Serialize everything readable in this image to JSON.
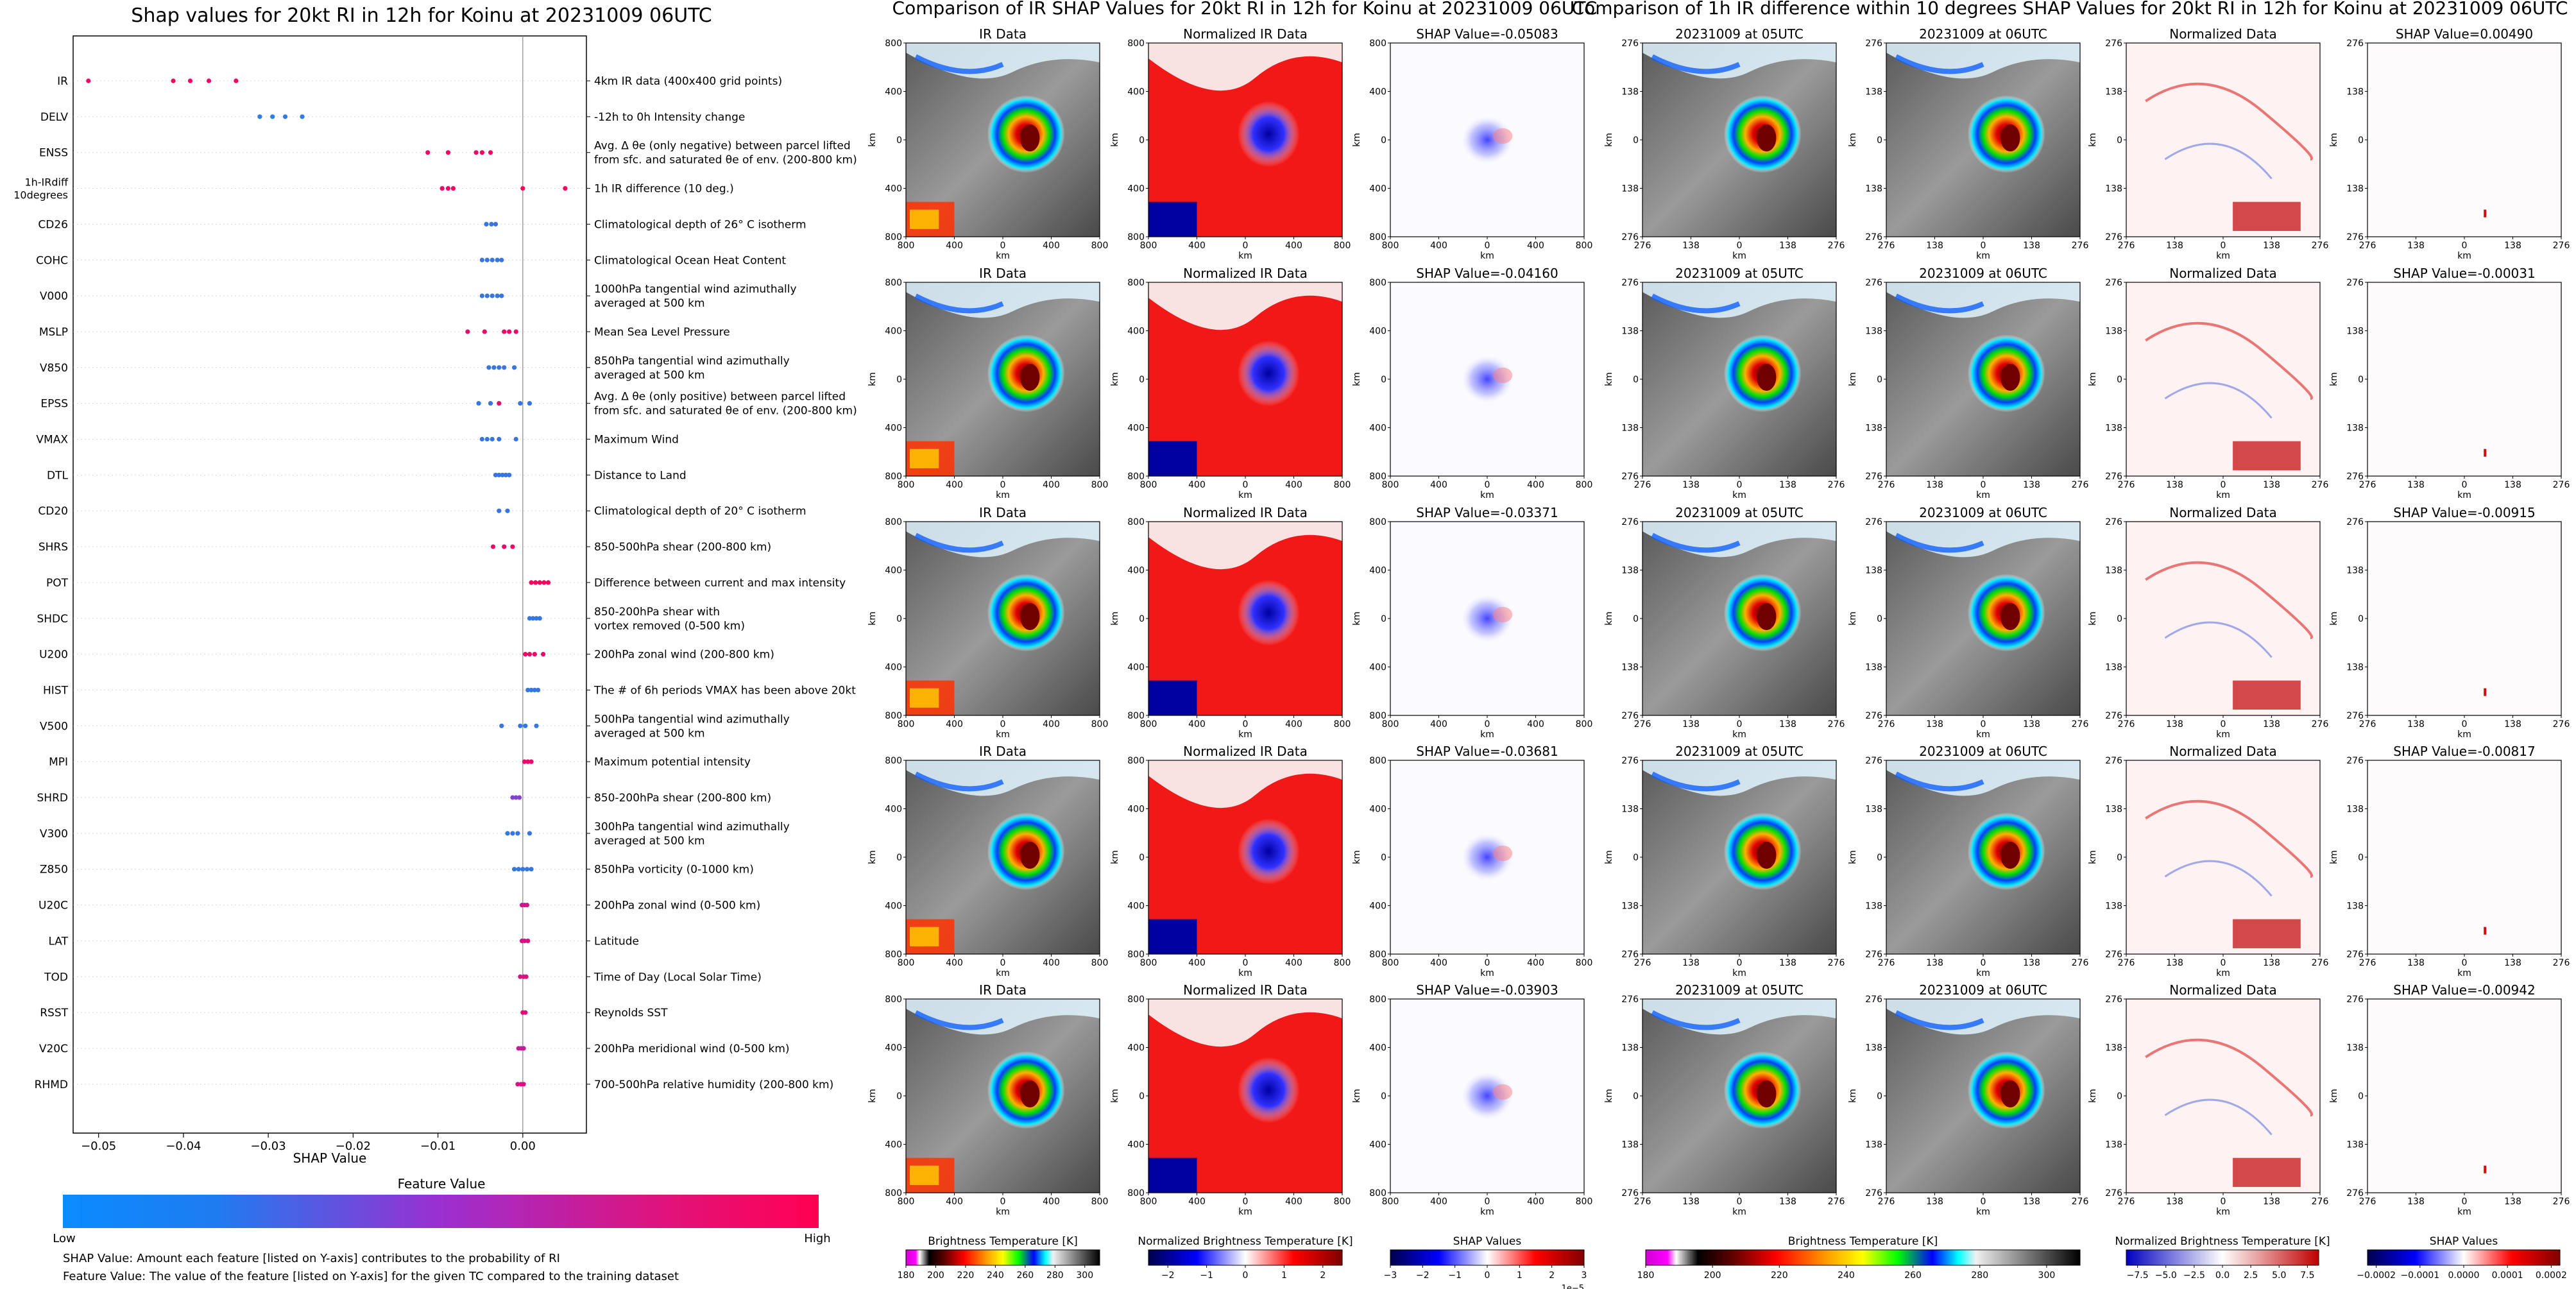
{
  "left_panel": {
    "title": "Shap values for 20kt RI in 12h for Koinu at 20231009 06UTC",
    "colorbar_title": "Feature Value",
    "colorbar_low": "Low",
    "colorbar_high": "High",
    "footnote_1": "SHAP Value: Amount each feature [listed on Y-axis] contributes to the probability of RI",
    "footnote_2": "Feature Value: The value of the feature [listed on Y-axis] for the given TC compared to the training dataset",
    "colors": {
      "low": "#1e88e5",
      "mid": "#9b30c8",
      "high": "#ff0051",
      "grid": "#bbbbbb"
    }
  },
  "chart_data": [
    {
      "type": "scatter",
      "title": "Shap values for 20kt RI in 12h for Koinu at 20231009 06UTC",
      "xlabel": "SHAP Value",
      "xlim": [
        -0.053,
        0.0075
      ],
      "xticks": [
        -0.05,
        -0.04,
        -0.03,
        -0.02,
        -0.01,
        0.0
      ],
      "xtick_labels": [
        "−0.05",
        "−0.04",
        "−0.03",
        "−0.02",
        "−0.01",
        "0.00"
      ],
      "features": [
        {
          "name": "IR",
          "description": [
            "4km IR data (400x400 grid points)"
          ],
          "points": [
            [
              -0.0512,
              0.9
            ],
            [
              -0.0412,
              0.95
            ],
            [
              -0.0392,
              0.92
            ],
            [
              -0.037,
              0.9
            ],
            [
              -0.0338,
              0.95
            ]
          ]
        },
        {
          "name": "DELV",
          "description": [
            "-12h to 0h Intensity change"
          ],
          "points": [
            [
              -0.031,
              0.05
            ],
            [
              -0.0295,
              0.05
            ],
            [
              -0.028,
              0.05
            ],
            [
              -0.026,
              0.05
            ]
          ]
        },
        {
          "name": "ENSS",
          "description": [
            "Avg. Δ θe (only negative) between parcel lifted",
            "from sfc. and saturated θe of env. (200-800 km)"
          ],
          "points": [
            [
              -0.0112,
              0.92
            ],
            [
              -0.0088,
              0.95
            ],
            [
              -0.0055,
              0.9
            ],
            [
              -0.0048,
              0.95
            ],
            [
              -0.0038,
              0.92
            ]
          ]
        },
        {
          "name": "1h-IRdiff\n10degrees",
          "description": [
            "1h IR difference (10 deg.)"
          ],
          "points": [
            [
              -0.0095,
              0.9
            ],
            [
              -0.0088,
              0.92
            ],
            [
              -0.0082,
              0.95
            ],
            [
              0.0,
              0.95
            ],
            [
              0.005,
              0.92
            ]
          ]
        },
        {
          "name": "CD26",
          "description": [
            "Climatological depth of 26° C isotherm"
          ],
          "points": [
            [
              -0.0043,
              0.1
            ],
            [
              -0.0037,
              0.1
            ],
            [
              -0.0032,
              0.1
            ]
          ]
        },
        {
          "name": "COHC",
          "description": [
            "Climatological Ocean Heat Content"
          ],
          "points": [
            [
              -0.0048,
              0.1
            ],
            [
              -0.0042,
              0.1
            ],
            [
              -0.0036,
              0.1
            ],
            [
              -0.003,
              0.1
            ],
            [
              -0.0025,
              0.1
            ]
          ]
        },
        {
          "name": "V000",
          "description": [
            "1000hPa tangential wind azimuthally",
            "averaged at 500 km"
          ],
          "points": [
            [
              -0.0048,
              0.1
            ],
            [
              -0.0042,
              0.1
            ],
            [
              -0.0036,
              0.1
            ],
            [
              -0.003,
              0.1
            ],
            [
              -0.0025,
              0.1
            ]
          ]
        },
        {
          "name": "MSLP",
          "description": [
            "Mean Sea Level Pressure"
          ],
          "points": [
            [
              -0.0065,
              0.9
            ],
            [
              -0.0045,
              0.9
            ],
            [
              -0.0022,
              0.9
            ],
            [
              -0.0016,
              0.9
            ],
            [
              -0.0008,
              0.9
            ]
          ]
        },
        {
          "name": "V850",
          "description": [
            "850hPa tangential wind azimuthally",
            "averaged at 500 km"
          ],
          "points": [
            [
              -0.004,
              0.1
            ],
            [
              -0.0034,
              0.1
            ],
            [
              -0.0028,
              0.1
            ],
            [
              -0.0022,
              0.1
            ],
            [
              -0.001,
              0.1
            ]
          ]
        },
        {
          "name": "EPSS",
          "description": [
            "Avg. Δ θe (only positive) between parcel lifted",
            "from sfc. and saturated θe of env. (200-800 km)"
          ],
          "points": [
            [
              -0.0052,
              0.1
            ],
            [
              -0.0038,
              0.1
            ],
            [
              -0.0028,
              0.9
            ],
            [
              -0.0003,
              0.1
            ],
            [
              0.0008,
              0.1
            ]
          ]
        },
        {
          "name": "VMAX",
          "description": [
            "Maximum Wind"
          ],
          "points": [
            [
              -0.0048,
              0.1
            ],
            [
              -0.0042,
              0.1
            ],
            [
              -0.0036,
              0.1
            ],
            [
              -0.0028,
              0.1
            ],
            [
              -0.0008,
              0.1
            ]
          ]
        },
        {
          "name": "DTL",
          "description": [
            "Distance to Land"
          ],
          "points": [
            [
              -0.0032,
              0.1
            ],
            [
              -0.0028,
              0.1
            ],
            [
              -0.0024,
              0.1
            ],
            [
              -0.002,
              0.1
            ],
            [
              -0.0016,
              0.1
            ]
          ]
        },
        {
          "name": "CD20",
          "description": [
            "Climatological depth of 20° C isotherm"
          ],
          "points": [
            [
              -0.0028,
              0.1
            ],
            [
              -0.0018,
              0.1
            ]
          ]
        },
        {
          "name": "SHRS",
          "description": [
            "850-500hPa shear (200-800 km)"
          ],
          "points": [
            [
              -0.0035,
              0.9
            ],
            [
              -0.0022,
              0.9
            ],
            [
              -0.0012,
              0.9
            ]
          ]
        },
        {
          "name": "POT",
          "description": [
            "Difference between current and max intensity"
          ],
          "points": [
            [
              0.001,
              0.95
            ],
            [
              0.0015,
              0.95
            ],
            [
              0.002,
              0.95
            ],
            [
              0.0025,
              0.95
            ],
            [
              0.003,
              0.95
            ]
          ]
        },
        {
          "name": "SHDC",
          "description": [
            "850-200hPa shear with",
            "vortex removed (0-500 km)"
          ],
          "points": [
            [
              0.0008,
              0.1
            ],
            [
              0.0012,
              0.1
            ],
            [
              0.0016,
              0.1
            ],
            [
              0.002,
              0.1
            ]
          ]
        },
        {
          "name": "U200",
          "description": [
            "200hPa zonal wind (200-800 km)"
          ],
          "points": [
            [
              0.0003,
              0.9
            ],
            [
              0.0008,
              0.9
            ],
            [
              0.0014,
              0.9
            ],
            [
              0.0024,
              0.9
            ]
          ]
        },
        {
          "name": "HIST",
          "description": [
            "The # of 6h periods VMAX has been above 20kt"
          ],
          "points": [
            [
              0.0006,
              0.1
            ],
            [
              0.001,
              0.1
            ],
            [
              0.0014,
              0.1
            ],
            [
              0.0018,
              0.1
            ]
          ]
        },
        {
          "name": "V500",
          "description": [
            "500hPa tangential wind azimuthally",
            "averaged at 500 km"
          ],
          "points": [
            [
              -0.0025,
              0.1
            ],
            [
              -0.0003,
              0.1
            ],
            [
              0.0003,
              0.1
            ],
            [
              0.0016,
              0.1
            ]
          ]
        },
        {
          "name": "MPI",
          "description": [
            "Maximum potential intensity"
          ],
          "points": [
            [
              0.0002,
              0.9
            ],
            [
              0.0006,
              0.9
            ],
            [
              0.001,
              0.9
            ]
          ]
        },
        {
          "name": "SHRD",
          "description": [
            "850-200hPa shear (200-800 km)"
          ],
          "points": [
            [
              -0.0012,
              0.4
            ],
            [
              -0.0008,
              0.4
            ],
            [
              -0.0004,
              0.4
            ]
          ]
        },
        {
          "name": "V300",
          "description": [
            "300hPa tangential wind azimuthally",
            "averaged at 500 km"
          ],
          "points": [
            [
              -0.0018,
              0.1
            ],
            [
              -0.0012,
              0.1
            ],
            [
              -0.0006,
              0.1
            ],
            [
              0.0008,
              0.1
            ]
          ]
        },
        {
          "name": "Z850",
          "description": [
            "850hPa vorticity (0-1000 km)"
          ],
          "points": [
            [
              -0.001,
              0.1
            ],
            [
              -0.0005,
              0.1
            ],
            [
              0.0,
              0.1
            ],
            [
              0.0005,
              0.1
            ],
            [
              0.001,
              0.1
            ]
          ]
        },
        {
          "name": "U20C",
          "description": [
            "200hPa zonal wind (0-500 km)"
          ],
          "points": [
            [
              -0.0001,
              0.75
            ],
            [
              0.0002,
              0.75
            ],
            [
              0.0005,
              0.75
            ]
          ]
        },
        {
          "name": "LAT",
          "description": [
            "Latitude"
          ],
          "points": [
            [
              -0.0001,
              0.8
            ],
            [
              0.0002,
              0.8
            ],
            [
              0.0006,
              0.8
            ]
          ]
        },
        {
          "name": "TOD",
          "description": [
            "Time of Day (Local Solar Time)"
          ],
          "points": [
            [
              -0.0003,
              0.8
            ],
            [
              0.0001,
              0.8
            ],
            [
              0.0004,
              0.8
            ]
          ]
        },
        {
          "name": "RSST",
          "description": [
            "Reynolds SST"
          ],
          "points": [
            [
              0.0,
              0.85
            ],
            [
              0.0003,
              0.85
            ]
          ]
        },
        {
          "name": "V20C",
          "description": [
            "200hPa meridional wind (0-500 km)"
          ],
          "points": [
            [
              -0.0005,
              0.7
            ],
            [
              -0.0002,
              0.7
            ],
            [
              0.0001,
              0.7
            ]
          ]
        },
        {
          "name": "RHMD",
          "description": [
            "700-500hPa relative humidity (200-800 km)"
          ],
          "points": [
            [
              -0.0006,
              0.8
            ],
            [
              -0.0002,
              0.8
            ],
            [
              0.0001,
              0.8
            ]
          ]
        }
      ]
    },
    {
      "type": "heatmap",
      "title": "Comparison of IR SHAP Values for 20kt RI in 12h for Koinu at 20231009 06UTC",
      "columns": [
        {
          "key": "ir",
          "subtitle": "IR Data"
        },
        {
          "key": "norm",
          "subtitle": "Normalized IR Data"
        },
        {
          "key": "shap",
          "subtitle": "SHAP Value"
        }
      ],
      "shap_values": [
        "SHAP Value=-0.05083",
        "SHAP Value=-0.04160",
        "SHAP Value=-0.03371",
        "SHAP Value=-0.03681",
        "SHAP Value=-0.03903"
      ],
      "axis_unit": "km",
      "xticks": [
        "800",
        "400",
        "0",
        "400",
        "800"
      ],
      "yticks": [
        "800",
        "400",
        "0",
        "400",
        "800"
      ],
      "colorbars": [
        {
          "label": "Brightness Temperature [K]",
          "ticks": [
            "180",
            "200",
            "220",
            "240",
            "260",
            "280",
            "300"
          ],
          "range": [
            180,
            310
          ]
        },
        {
          "label": "Normalized Brightness Temperature [K]",
          "ticks": [
            "−2",
            "−1",
            "0",
            "1",
            "2"
          ],
          "range": [
            -2.5,
            2.5
          ]
        },
        {
          "label": "SHAP Values",
          "ticks": [
            "−3",
            "−2",
            "−1",
            "0",
            "1",
            "2",
            "3"
          ],
          "range": [
            -3,
            3
          ],
          "offset": "1e−5"
        }
      ]
    },
    {
      "type": "heatmap",
      "title": "Comparison of 1h IR difference within 10 degrees SHAP Values for 20kt RI in 12h for Koinu at 20231009 06UTC",
      "columns": [
        {
          "key": "ir05",
          "subtitle": "20231009 at 05UTC"
        },
        {
          "key": "ir06",
          "subtitle": "20231009 at 06UTC"
        },
        {
          "key": "normdiff",
          "subtitle": "Normalized Data"
        },
        {
          "key": "shapdiff",
          "subtitle": "SHAP Value"
        }
      ],
      "shap_values": [
        "SHAP Value=0.00490",
        "SHAP Value=-0.00031",
        "SHAP Value=-0.00915",
        "SHAP Value=-0.00817",
        "SHAP Value=-0.00942"
      ],
      "axis_unit": "km",
      "xticks": [
        "276",
        "138",
        "0",
        "138",
        "276"
      ],
      "yticks": [
        "276",
        "138",
        "0",
        "138",
        "276"
      ],
      "colorbars": [
        {
          "label": "Brightness Temperature [K]",
          "ticks": [
            "180",
            "200",
            "220",
            "240",
            "260",
            "280",
            "300"
          ],
          "range": [
            180,
            310
          ]
        },
        {
          "label": "Normalized Brightness Temperature [K]",
          "ticks": [
            "−7.5",
            "−5.0",
            "−2.5",
            "0.0",
            "2.5",
            "5.0",
            "7.5"
          ],
          "range": [
            -8.5,
            8.5
          ]
        },
        {
          "label": "SHAP Values",
          "ticks": [
            "−0.0002",
            "−0.0001",
            "0.0000",
            "0.0001",
            "0.0002"
          ],
          "range": [
            -0.00022,
            0.00022
          ]
        }
      ]
    }
  ]
}
